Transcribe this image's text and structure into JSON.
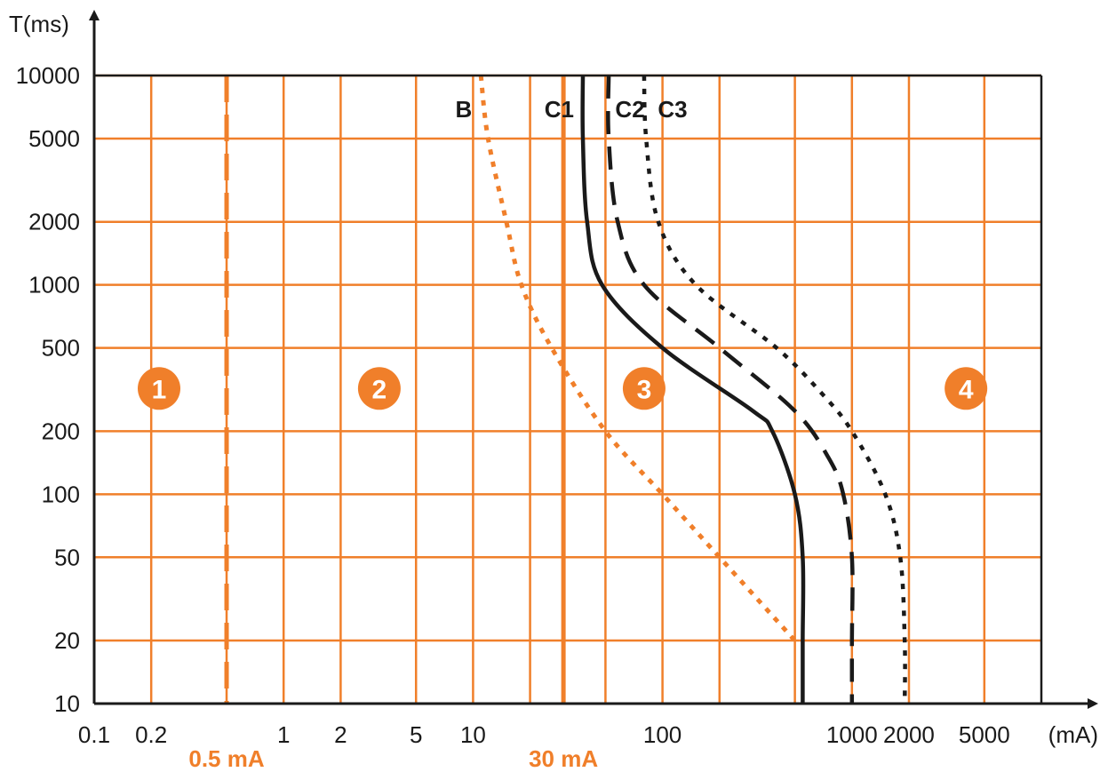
{
  "colors": {
    "orange": "#f07f2a",
    "black": "#1a1a1a",
    "background": "#ffffff"
  },
  "chart_data": {
    "type": "line",
    "x_scale": "log",
    "y_scale": "log",
    "xlim": [
      0.1,
      10000
    ],
    "ylim": [
      10,
      10000
    ],
    "ylabel": "T(ms)",
    "xunit": "(mA)",
    "grid": true,
    "x_ticks": [
      {
        "value": 0.1,
        "label": "0.1"
      },
      {
        "value": 0.2,
        "label": "0.2"
      },
      {
        "value": 1,
        "label": "1"
      },
      {
        "value": 2,
        "label": "2"
      },
      {
        "value": 5,
        "label": "5"
      },
      {
        "value": 10,
        "label": "10"
      },
      {
        "value": 100,
        "label": "100"
      },
      {
        "value": 1000,
        "label": "1000"
      },
      {
        "value": 2000,
        "label": "2000"
      },
      {
        "value": 5000,
        "label": "5000"
      }
    ],
    "x_grid": [
      0.2,
      0.5,
      1,
      2,
      5,
      10,
      20,
      50,
      100,
      200,
      500,
      1000,
      2000,
      5000,
      10000
    ],
    "y_ticks": [
      {
        "value": 10000,
        "label": "10000"
      },
      {
        "value": 5000,
        "label": "5000"
      },
      {
        "value": 2000,
        "label": "2000"
      },
      {
        "value": 1000,
        "label": "1000"
      },
      {
        "value": 500,
        "label": "500"
      },
      {
        "value": 200,
        "label": "200"
      },
      {
        "value": 100,
        "label": "100"
      },
      {
        "value": 50,
        "label": "50"
      },
      {
        "value": 20,
        "label": "20"
      },
      {
        "value": 10,
        "label": "10"
      }
    ],
    "thresholds": [
      {
        "label": "0.5 mA",
        "x": 0.5,
        "style": "dashed"
      },
      {
        "label": "30 mA",
        "x": 30,
        "style": "solid"
      }
    ],
    "series": [
      {
        "name": "B",
        "style": "orange-dotted",
        "points": [
          [
            11,
            10000
          ],
          [
            12,
            5000
          ],
          [
            15,
            2000
          ],
          [
            18,
            1000
          ],
          [
            26,
            500
          ],
          [
            50,
            200
          ],
          [
            100,
            100
          ],
          [
            200,
            50
          ],
          [
            500,
            20
          ]
        ]
      },
      {
        "name": "C1",
        "style": "black-solid",
        "points": [
          [
            38,
            10000
          ],
          [
            38,
            5000
          ],
          [
            40,
            2000
          ],
          [
            48,
            1000
          ],
          [
            100,
            500
          ],
          [
            300,
            250
          ],
          [
            380,
            200
          ],
          [
            500,
            100
          ],
          [
            550,
            50
          ],
          [
            550,
            20
          ],
          [
            550,
            10
          ]
        ]
      },
      {
        "name": "C2",
        "style": "black-dashed",
        "points": [
          [
            52,
            10000
          ],
          [
            52,
            5000
          ],
          [
            58,
            2000
          ],
          [
            80,
            1000
          ],
          [
            200,
            500
          ],
          [
            500,
            250
          ],
          [
            750,
            150
          ],
          [
            900,
            100
          ],
          [
            1000,
            50
          ],
          [
            1000,
            20
          ],
          [
            1000,
            10
          ]
        ]
      },
      {
        "name": "C3",
        "style": "black-dotted",
        "points": [
          [
            80,
            10000
          ],
          [
            82,
            5000
          ],
          [
            95,
            2000
          ],
          [
            150,
            1000
          ],
          [
            400,
            500
          ],
          [
            700,
            300
          ],
          [
            1000,
            200
          ],
          [
            1500,
            100
          ],
          [
            1800,
            50
          ],
          [
            1900,
            20
          ],
          [
            1900,
            10
          ]
        ]
      }
    ],
    "zones": [
      {
        "label": "1",
        "x": 0.22,
        "y": 320
      },
      {
        "label": "2",
        "x": 3.2,
        "y": 320
      },
      {
        "label": "3",
        "x": 80,
        "y": 320
      },
      {
        "label": "4",
        "x": 4000,
        "y": 320
      }
    ]
  }
}
